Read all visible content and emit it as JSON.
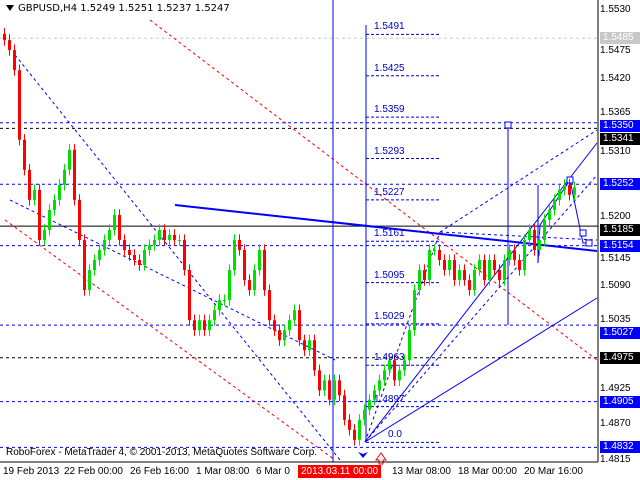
{
  "header": {
    "symbol_title": "GBPUSD,H4",
    "quotes": "1.5249 1.5251 1.5237 1.5247"
  },
  "footer": {
    "copyright": "RoboForex - MetaTrader 4, © 2001-2013, MetaQuotes Software Corp."
  },
  "colors": {
    "bull": "#00e000",
    "bear": "#ff0000",
    "line": "#0000ff",
    "fib": "#0000c8",
    "axis_bg": "#ffffff"
  },
  "price_axis": {
    "ticks": [
      "1.5530",
      "1.5475",
      "1.5420",
      "1.5365",
      "1.5310",
      "1.5200",
      "1.5145",
      "1.5090",
      "1.5035",
      "1.4925",
      "1.4870",
      "1.4815"
    ],
    "tick_values": [
      1.553,
      1.5475,
      1.542,
      1.5365,
      1.531,
      1.52,
      1.5145,
      1.509,
      1.5035,
      1.4925,
      1.487,
      1.4815
    ],
    "levels": [
      {
        "label": "1.5485",
        "price": 1.5485,
        "style": "gray"
      },
      {
        "label": "1.5350",
        "price": 1.535,
        "style": "blue"
      },
      {
        "label": "1.5341",
        "price": 1.5341,
        "style": "black"
      },
      {
        "label": "1.5252",
        "price": 1.5252,
        "style": "blue"
      },
      {
        "label": "1.5185",
        "price": 1.5185,
        "style": "black"
      },
      {
        "label": "1.5154",
        "price": 1.5154,
        "style": "blue"
      },
      {
        "label": "1.5027",
        "price": 1.5027,
        "style": "blue"
      },
      {
        "label": "1.4975",
        "price": 1.4975,
        "style": "black"
      },
      {
        "label": "1.4905",
        "price": 1.4905,
        "style": "blue"
      },
      {
        "label": "1.4832",
        "price": 1.4832,
        "style": "blue"
      }
    ]
  },
  "fib_levels": [
    {
      "label": "1.5491",
      "price": 1.5491
    },
    {
      "label": "1.5425",
      "price": 1.5425
    },
    {
      "label": "1.5359",
      "price": 1.5359
    },
    {
      "label": "1.5293",
      "price": 1.5293
    },
    {
      "label": "1.5227",
      "price": 1.5227
    },
    {
      "label": "1.5161",
      "price": 1.5161
    },
    {
      "label": "1.5095",
      "price": 1.5095
    },
    {
      "label": "1.5029",
      "price": 1.5029
    },
    {
      "label": "1.4963",
      "price": 1.4963
    },
    {
      "label": "1.4897",
      "price": 1.4897
    },
    {
      "label": "0.0",
      "price": 1.484
    }
  ],
  "time_axis": {
    "labels": [
      "19 Feb 2013",
      "22 Feb 00:00",
      "26 Feb 16:00",
      "1 Mar 08:00",
      "6 Mar 0",
      "13 Mar 08:00",
      "18 Mar 00:00",
      "20 Mar 16:00"
    ],
    "highlight": "2013.03.11 00:00"
  },
  "chart_data": {
    "type": "candlestick",
    "symbol": "GBPUSD",
    "timeframe": "H4",
    "ylim": [
      1.4815,
      1.553
    ],
    "closes": [
      1.5482,
      1.5466,
      1.5434,
      1.5323,
      1.5275,
      1.5227,
      1.5243,
      1.5163,
      1.5179,
      1.5211,
      1.5227,
      1.5251,
      1.5275,
      1.5307,
      1.5227,
      1.5163,
      1.5083,
      1.5115,
      1.5131,
      1.5147,
      1.5163,
      1.5179,
      1.5203,
      1.5163,
      1.5147,
      1.5139,
      1.5131,
      1.5123,
      1.5147,
      1.5155,
      1.5163,
      1.5179,
      1.5163,
      1.5171,
      1.5163,
      1.5163,
      1.5115,
      1.5035,
      1.5019,
      1.5035,
      1.5019,
      1.5035,
      1.5051,
      1.5067,
      1.5067,
      1.5115,
      1.5163,
      1.5147,
      1.5099,
      1.5083,
      1.5115,
      1.5147,
      1.5083,
      1.5035,
      1.5019,
      1.5003,
      1.5019,
      1.5035,
      1.5051,
      1.5003,
      1.4987,
      1.5003,
      1.4955,
      1.4923,
      1.4939,
      1.4908,
      1.4939,
      1.4915,
      1.4876,
      1.486,
      1.4844,
      1.4876,
      1.4892,
      1.4908,
      1.4923,
      1.4939,
      1.4955,
      1.4971,
      1.4939,
      1.4955,
      1.4971,
      1.5019,
      1.5083,
      1.5115,
      1.5099,
      1.5147,
      1.5147,
      1.5131,
      1.5115,
      1.5131,
      1.5099,
      1.5115,
      1.5099,
      1.5083,
      1.5115,
      1.5131,
      1.5099,
      1.5131,
      1.5115,
      1.5099,
      1.5131,
      1.5147,
      1.5131,
      1.5115,
      1.5163,
      1.5179,
      1.5147,
      1.5163,
      1.5195,
      1.5211,
      1.5227,
      1.5243,
      1.5251,
      1.5235,
      1.5247
    ]
  }
}
